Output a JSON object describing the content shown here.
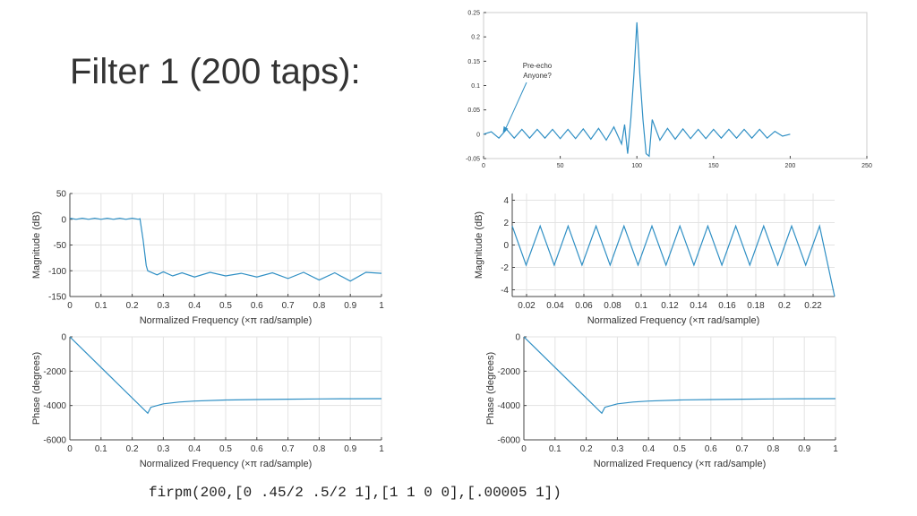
{
  "slide": {
    "title": "Filter 1 (200 taps):",
    "code": "firpm(200,[0 .45/2 .5/2 1],[1 1 0 0],[.00005 1])"
  },
  "colors": {
    "line": "#2f8fc4",
    "grid": "#e3e3e3",
    "axis": "#444444",
    "frame": "#cccccc"
  },
  "chart_data": [
    {
      "id": "impulse",
      "type": "line",
      "title": "",
      "xlabel": "",
      "ylabel": "",
      "xlim": [
        0,
        250
      ],
      "ylim": [
        -0.05,
        0.25
      ],
      "xticks": [
        0,
        50,
        100,
        150,
        200,
        250
      ],
      "yticks": [
        -0.05,
        0,
        0.05,
        0.1,
        0.15,
        0.2,
        0.25
      ],
      "xtick_labels": [
        "0",
        "50",
        "100",
        "150",
        "200",
        "250"
      ],
      "ytick_labels": [
        "-0.05",
        "0",
        "0.05",
        "0.1",
        "0.15",
        "0.2",
        "0.25"
      ],
      "grid": false,
      "annotation": {
        "text": [
          "Pre-echo",
          "Anyone?"
        ],
        "points_to": [
          12,
          0.0
        ]
      },
      "series": [
        {
          "x": [
            0,
            5,
            10,
            15,
            20,
            25,
            30,
            35,
            40,
            45,
            50,
            55,
            60,
            65,
            70,
            75,
            80,
            85,
            90,
            92,
            94,
            96,
            98,
            100,
            102,
            104,
            106,
            108,
            110,
            115,
            120,
            125,
            130,
            135,
            140,
            145,
            150,
            155,
            160,
            165,
            170,
            175,
            180,
            185,
            190,
            195,
            200
          ],
          "y": [
            0.0,
            0.005,
            -0.008,
            0.01,
            -0.008,
            0.01,
            -0.008,
            0.01,
            -0.008,
            0.01,
            -0.009,
            0.01,
            -0.009,
            0.011,
            -0.01,
            0.012,
            -0.012,
            0.015,
            -0.02,
            0.02,
            -0.04,
            0.03,
            0.12,
            0.23,
            0.12,
            0.03,
            -0.04,
            -0.045,
            0.03,
            -0.012,
            0.012,
            -0.01,
            0.011,
            -0.009,
            0.01,
            -0.009,
            0.01,
            -0.008,
            0.01,
            -0.008,
            0.01,
            -0.008,
            0.01,
            -0.008,
            0.006,
            -0.004,
            0.0
          ]
        }
      ]
    },
    {
      "id": "magnitude-full",
      "type": "line",
      "title": "",
      "xlabel": "Normalized Frequency  (×π rad/sample)",
      "ylabel": "Magnitude (dB)",
      "xlim": [
        0,
        1
      ],
      "ylim": [
        -150,
        50
      ],
      "xticks": [
        0,
        0.1,
        0.2,
        0.3,
        0.4,
        0.5,
        0.6,
        0.7,
        0.8,
        0.9,
        1
      ],
      "yticks": [
        -150,
        -100,
        -50,
        0,
        50
      ],
      "xtick_labels": [
        "0",
        "0.1",
        "0.2",
        "0.3",
        "0.4",
        "0.5",
        "0.6",
        "0.7",
        "0.8",
        "0.9",
        "1"
      ],
      "ytick_labels": [
        "-150",
        "-100",
        "-50",
        "0",
        "50"
      ],
      "grid": true,
      "series": [
        {
          "x": [
            0,
            0.02,
            0.04,
            0.06,
            0.08,
            0.1,
            0.12,
            0.14,
            0.16,
            0.18,
            0.2,
            0.22,
            0.225,
            0.235,
            0.245,
            0.25,
            0.28,
            0.3,
            0.33,
            0.36,
            0.4,
            0.45,
            0.5,
            0.55,
            0.6,
            0.65,
            0.7,
            0.75,
            0.8,
            0.85,
            0.9,
            0.95,
            1.0
          ],
          "y": [
            2,
            0,
            2,
            0,
            2,
            0,
            2,
            0,
            2,
            0,
            2,
            0,
            1,
            -40,
            -90,
            -100,
            -108,
            -102,
            -110,
            -104,
            -112,
            -103,
            -110,
            -105,
            -112,
            -104,
            -115,
            -103,
            -118,
            -104,
            -120,
            -103,
            -105
          ]
        }
      ]
    },
    {
      "id": "phase-left",
      "type": "line",
      "title": "",
      "xlabel": "Normalized Frequency  (×π rad/sample)",
      "ylabel": "Phase (degrees)",
      "xlim": [
        0,
        1
      ],
      "ylim": [
        -6000,
        0
      ],
      "xticks": [
        0,
        0.1,
        0.2,
        0.3,
        0.4,
        0.5,
        0.6,
        0.7,
        0.8,
        0.9,
        1
      ],
      "yticks": [
        -6000,
        -4000,
        -2000,
        0
      ],
      "xtick_labels": [
        "0",
        "0.1",
        "0.2",
        "0.3",
        "0.4",
        "0.5",
        "0.6",
        "0.7",
        "0.8",
        "0.9",
        "1"
      ],
      "ytick_labels": [
        "-6000",
        "-4000",
        "-2000",
        "0"
      ],
      "grid": true,
      "series": [
        {
          "x": [
            0,
            0.25,
            0.26,
            0.3,
            0.35,
            0.4,
            0.5,
            0.6,
            0.7,
            0.8,
            0.9,
            1.0
          ],
          "y": [
            0,
            -4450,
            -4100,
            -3900,
            -3800,
            -3740,
            -3680,
            -3650,
            -3630,
            -3615,
            -3605,
            -3600
          ]
        }
      ]
    },
    {
      "id": "magnitude-zoom",
      "type": "line",
      "title": "",
      "xlabel": "Normalized Frequency  (×π rad/sample)",
      "ylabel": "Magnitude (dB)",
      "xlim": [
        0.01,
        0.235
      ],
      "ylim": [
        -4.6,
        4.6
      ],
      "xticks": [
        0.02,
        0.04,
        0.06,
        0.08,
        0.1,
        0.12,
        0.14,
        0.16,
        0.18,
        0.2,
        0.22
      ],
      "yticks": [
        -4,
        -2,
        0,
        2,
        4
      ],
      "xtick_labels": [
        "0.02",
        "0.04",
        "0.06",
        "0.08",
        "0.1",
        "0.12",
        "0.14",
        "0.16",
        "0.18",
        "0.2",
        "0.22"
      ],
      "ytick_labels": [
        "-4",
        "-2",
        "0",
        "2",
        "4"
      ],
      "grid": true,
      "series": [
        {
          "x": [
            0.01,
            0.0197,
            0.0295,
            0.0393,
            0.049,
            0.0587,
            0.0685,
            0.0783,
            0.088,
            0.0978,
            0.1075,
            0.1173,
            0.127,
            0.1368,
            0.1465,
            0.1563,
            0.166,
            0.1758,
            0.1855,
            0.1953,
            0.205,
            0.2148,
            0.2245,
            0.235
          ],
          "y": [
            1.7,
            -1.8,
            1.7,
            -1.8,
            1.7,
            -1.8,
            1.7,
            -1.8,
            1.7,
            -1.8,
            1.7,
            -1.8,
            1.7,
            -1.8,
            1.7,
            -1.8,
            1.7,
            -1.8,
            1.7,
            -1.8,
            1.7,
            -1.8,
            1.7,
            -4.6
          ]
        }
      ]
    },
    {
      "id": "phase-right",
      "type": "line",
      "title": "",
      "xlabel": "Normalized Frequency  (×π rad/sample)",
      "ylabel": "Phase (degrees)",
      "xlim": [
        0,
        1
      ],
      "ylim": [
        -6000,
        0
      ],
      "xticks": [
        0,
        0.1,
        0.2,
        0.3,
        0.4,
        0.5,
        0.6,
        0.7,
        0.8,
        0.9,
        1
      ],
      "yticks": [
        -6000,
        -4000,
        -2000,
        0
      ],
      "xtick_labels": [
        "0",
        "0.1",
        "0.2",
        "0.3",
        "0.4",
        "0.5",
        "0.6",
        "0.7",
        "0.8",
        "0.9",
        "1"
      ],
      "ytick_labels": [
        "-6000",
        "-4000",
        "-2000",
        "0"
      ],
      "grid": true,
      "series": [
        {
          "x": [
            0,
            0.25,
            0.26,
            0.3,
            0.35,
            0.4,
            0.5,
            0.6,
            0.7,
            0.8,
            0.9,
            1.0
          ],
          "y": [
            0,
            -4450,
            -4100,
            -3900,
            -3800,
            -3740,
            -3680,
            -3650,
            -3630,
            -3615,
            -3605,
            -3600
          ]
        }
      ]
    }
  ]
}
